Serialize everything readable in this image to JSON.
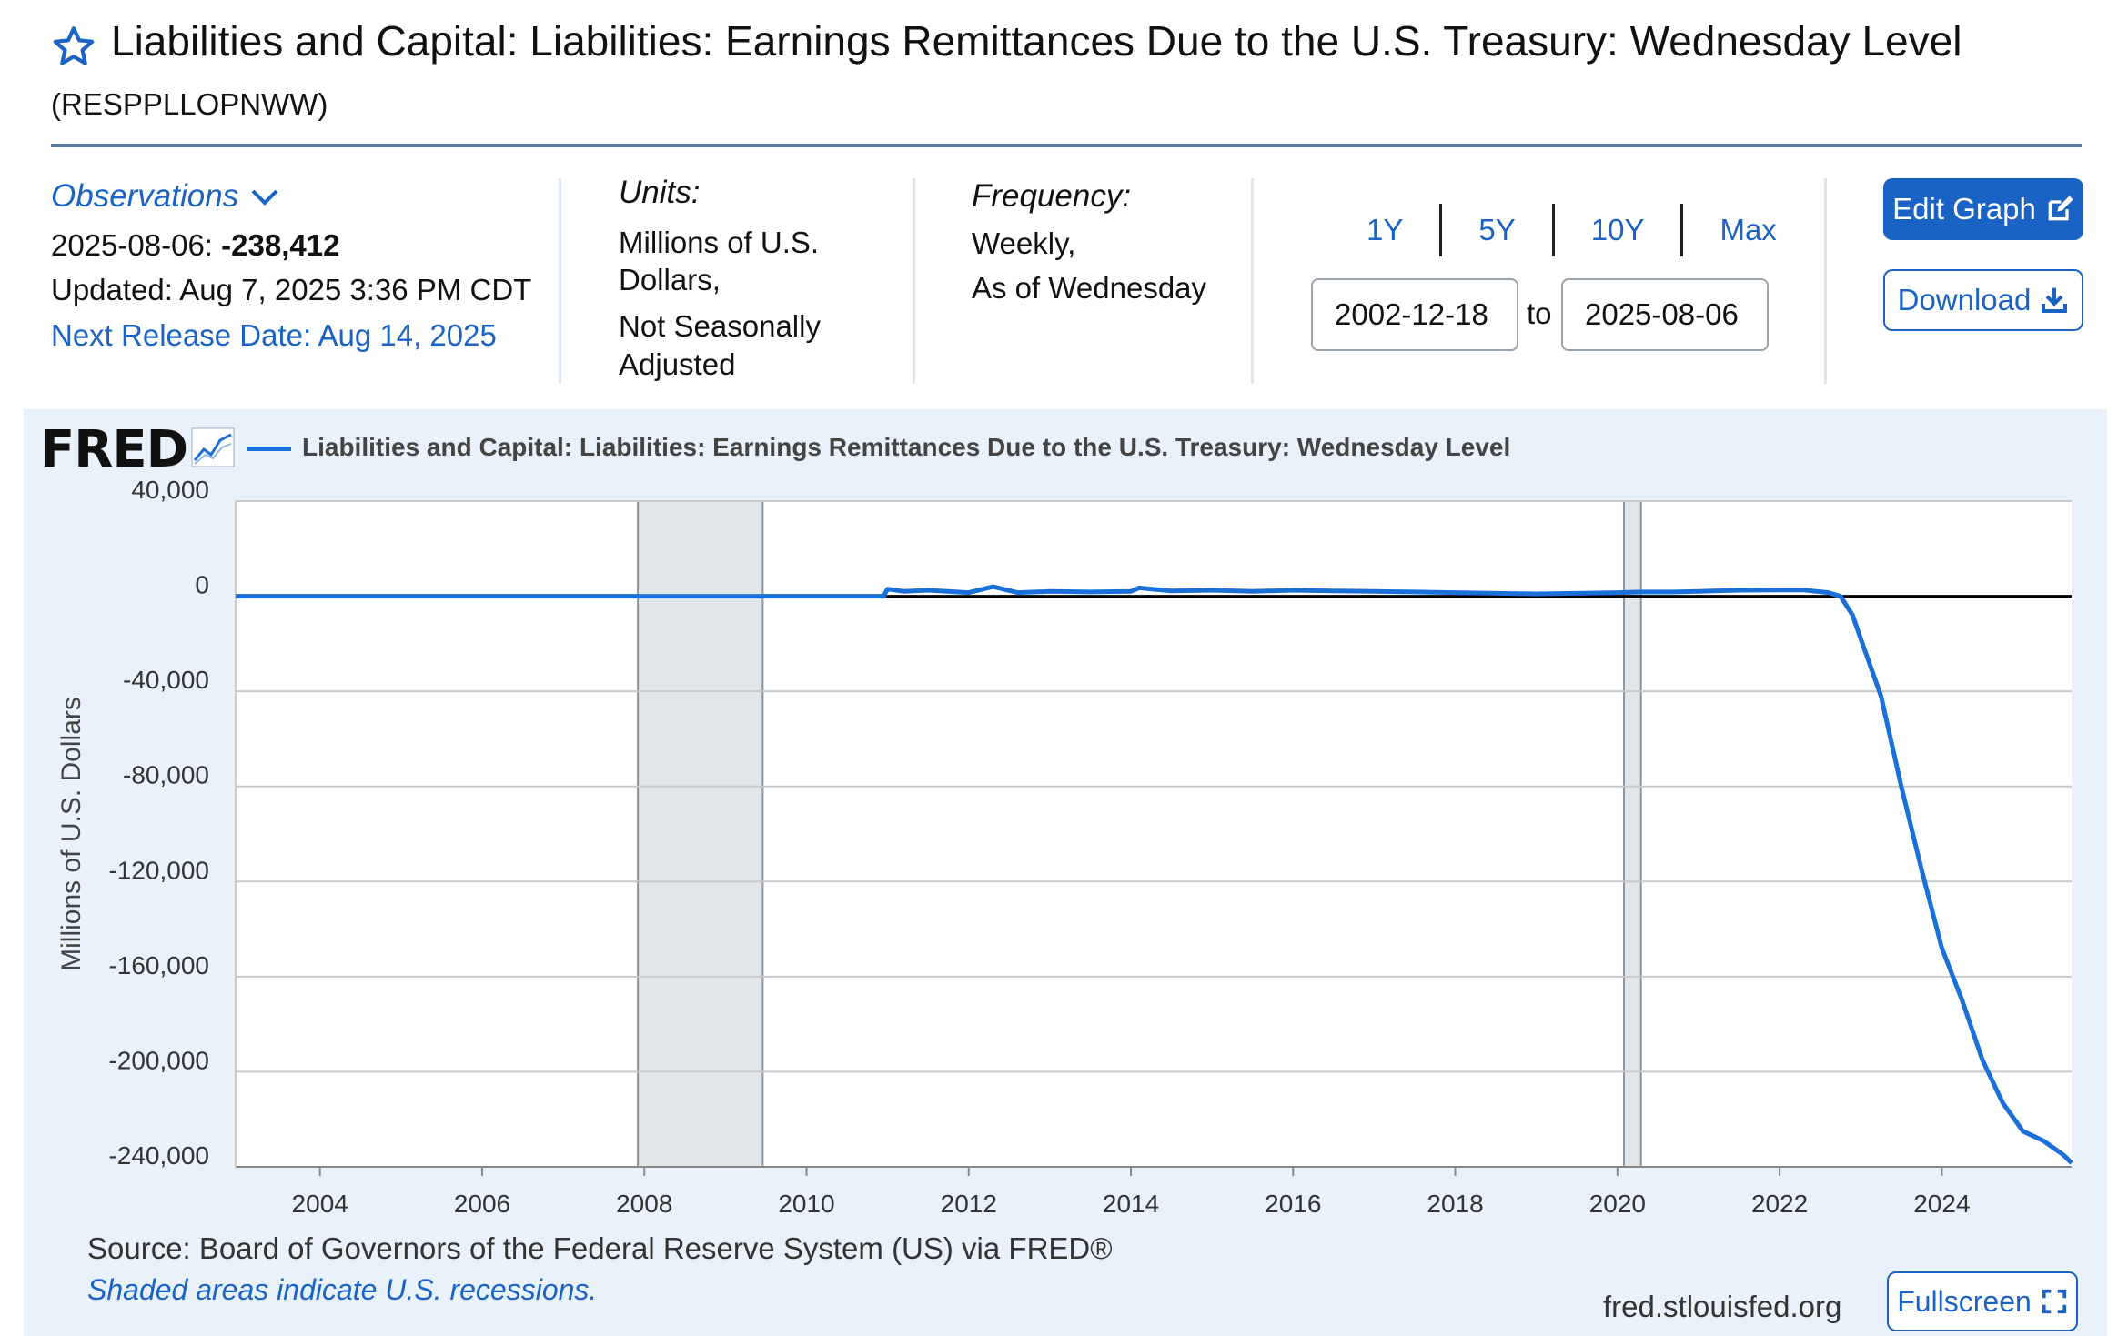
{
  "header": {
    "title": "Liabilities and Capital: Liabilities: Earnings Remittances Due to the U.S. Treasury: Wednesday Level",
    "series_id": "(RESPPLLOPNWW)"
  },
  "observations": {
    "label": "Observations",
    "date": "2025-08-06:",
    "value": "-238,412",
    "updated": "Updated: Aug 7, 2025 3:36 PM CDT",
    "next_release": "Next Release Date: Aug 14, 2025"
  },
  "units": {
    "label": "Units:",
    "line1": "Millions of U.S.",
    "line2": "Dollars,",
    "line3": "Not Seasonally",
    "line4": "Adjusted"
  },
  "frequency": {
    "label": "Frequency:",
    "line1": "Weekly,",
    "line2": "As of Wednesday"
  },
  "range": {
    "buttons": [
      "1Y",
      "5Y",
      "10Y",
      "Max"
    ],
    "start": "2002-12-18",
    "to": "to",
    "end": "2025-08-06"
  },
  "actions": {
    "edit": "Edit Graph",
    "download": "Download",
    "fullscreen": "Fullscreen"
  },
  "chart_header": {
    "logo": "FRED",
    "legend": "Liabilities and Capital: Liabilities: Earnings Remittances Due to the U.S. Treasury: Wednesday Level"
  },
  "footer": {
    "source": "Source: Board of Governors of the Federal Reserve System (US) via FRED®",
    "shaded": "Shaded areas indicate U.S. recessions.",
    "site": "fred.stlouisfed.org"
  },
  "colors": {
    "accent": "#1a63c4",
    "series": "#1a6fd8",
    "panel": "#e9f2fa",
    "recession": "#e1e6eb"
  },
  "chart_data": {
    "type": "line",
    "ylabel": "Millions of U.S. Dollars",
    "xlim": [
      2002.96,
      2025.6
    ],
    "ylim": [
      -240000,
      40000
    ],
    "y_ticks": [
      40000,
      0,
      -40000,
      -80000,
      -120000,
      -160000,
      -200000,
      -240000
    ],
    "y_tick_labels": [
      "40,000",
      "0",
      "-40,000",
      "-80,000",
      "-120,000",
      "-160,000",
      "-200,000",
      "-240,000"
    ],
    "x_ticks": [
      2004,
      2006,
      2008,
      2010,
      2012,
      2014,
      2016,
      2018,
      2020,
      2022,
      2024
    ],
    "x_tick_labels": [
      "2004",
      "2006",
      "2008",
      "2010",
      "2012",
      "2014",
      "2016",
      "2018",
      "2020",
      "2022",
      "2024"
    ],
    "recessions": [
      [
        2007.92,
        2009.46
      ],
      [
        2020.08,
        2020.29
      ]
    ],
    "zero_line": true,
    "grid": true,
    "series": [
      {
        "name": "Liabilities and Capital: Liabilities: Earnings Remittances Due to the U.S. Treasury: Wednesday Level",
        "x": [
          2002.96,
          2010.95,
          2011.0,
          2011.2,
          2011.5,
          2012.0,
          2012.3,
          2012.6,
          2013.0,
          2013.5,
          2014.0,
          2014.1,
          2014.5,
          2015.0,
          2015.5,
          2016.0,
          2016.5,
          2017.0,
          2017.5,
          2018.0,
          2018.5,
          2019.0,
          2019.5,
          2020.0,
          2020.3,
          2020.7,
          2021.0,
          2021.5,
          2022.0,
          2022.3,
          2022.6,
          2022.75,
          2022.9,
          2023.0,
          2023.25,
          2023.5,
          2023.75,
          2024.0,
          2024.25,
          2024.5,
          2024.75,
          2025.0,
          2025.25,
          2025.5,
          2025.6
        ],
        "y": [
          0,
          0,
          3000,
          2000,
          2500,
          1500,
          4000,
          1500,
          2000,
          1800,
          2000,
          3500,
          2200,
          2500,
          2000,
          2500,
          2200,
          2000,
          1800,
          1500,
          1200,
          1000,
          1200,
          1500,
          1800,
          1800,
          2000,
          2500,
          2600,
          2600,
          1500,
          0,
          -8000,
          -18000,
          -42000,
          -80000,
          -115000,
          -148000,
          -170000,
          -195000,
          -213000,
          -225000,
          -229000,
          -235000,
          -238412
        ]
      }
    ]
  }
}
